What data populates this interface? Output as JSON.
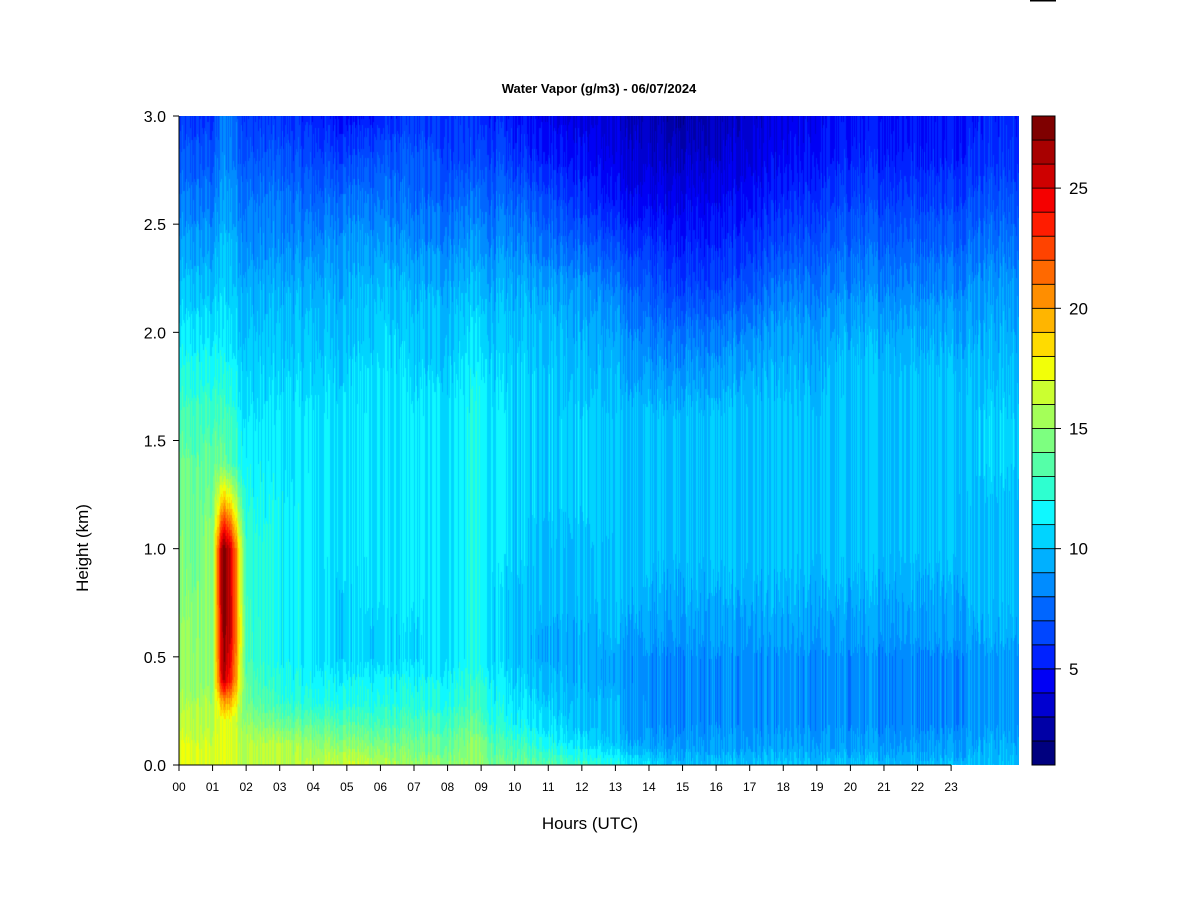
{
  "chart_data": {
    "type": "heatmap",
    "title": "Water Vapor (g/m3) - 06/07/2024",
    "xlabel": "Hours (UTC)",
    "ylabel": "Height (km)",
    "x_ticks": [
      "00",
      "01",
      "02",
      "03",
      "04",
      "05",
      "06",
      "07",
      "08",
      "09",
      "10",
      "11",
      "12",
      "13",
      "14",
      "15",
      "16",
      "17",
      "18",
      "19",
      "20",
      "21",
      "22",
      "23"
    ],
    "x_range": [
      0,
      23.85
    ],
    "y_ticks": [
      "0.0",
      "0.5",
      "1.0",
      "1.5",
      "2.0",
      "2.5",
      "3.0"
    ],
    "y_range": [
      0,
      3.0
    ],
    "colorbar": {
      "ticks": [
        "5",
        "10",
        "15",
        "20",
        "25"
      ],
      "range": [
        1,
        28
      ],
      "levels": [
        1,
        2,
        3,
        4,
        5,
        6,
        7,
        8,
        9,
        10,
        11,
        12,
        13,
        14,
        15,
        16,
        17,
        18,
        19,
        20,
        21,
        22,
        23,
        24,
        25,
        26,
        27,
        28
      ],
      "colors": [
        "#00007f",
        "#0000a6",
        "#0000d0",
        "#0000f5",
        "#0022ff",
        "#0046ff",
        "#0066ff",
        "#008cff",
        "#00b0ff",
        "#00d4ff",
        "#0ff8ff",
        "#2effd0",
        "#55ffa8",
        "#7dff80",
        "#a4ff58",
        "#cbff30",
        "#f2ff08",
        "#ffdb00",
        "#ffb500",
        "#ff8e00",
        "#ff6900",
        "#ff4300",
        "#ff1c00",
        "#f50000",
        "#ce0000",
        "#a80000",
        "#7f0000"
      ]
    },
    "hours": [
      0,
      0.5,
      1,
      1.3,
      1.5,
      2,
      3,
      4,
      5,
      6,
      7,
      8,
      8.8,
      9,
      9.5,
      10,
      11,
      12,
      13,
      14,
      15,
      16,
      17,
      18,
      19,
      20,
      21,
      22,
      23,
      23.85
    ],
    "heights": [
      0,
      0.1,
      0.2,
      0.3,
      0.4,
      0.5,
      0.6,
      0.8,
      1.0,
      1.2,
      1.4,
      1.6,
      1.8,
      2.0,
      2.2,
      2.4,
      2.6,
      2.8,
      3.0
    ],
    "values": [
      [
        17,
        17,
        17,
        17,
        17,
        16,
        16,
        16,
        17,
        16,
        15,
        15,
        15,
        15,
        14,
        14,
        14,
        13,
        12,
        11,
        10,
        10,
        10,
        10,
        10,
        10,
        10,
        10,
        10,
        10
      ],
      [
        17,
        16.5,
        16.5,
        17,
        17,
        16,
        16,
        15,
        15,
        14.5,
        14,
        14,
        15,
        14.5,
        13,
        13,
        12,
        11,
        10,
        9,
        9,
        9,
        9,
        9,
        9,
        9,
        9,
        9,
        9,
        9.5
      ],
      [
        16,
        16,
        16,
        17,
        17,
        15,
        14,
        13.5,
        13.5,
        13,
        13,
        13,
        14,
        13,
        12,
        11.5,
        11,
        10,
        9.5,
        8.5,
        8.5,
        8.5,
        8.5,
        8.5,
        8.5,
        8.5,
        8.5,
        8.5,
        8.5,
        9
      ],
      [
        15.5,
        15.5,
        15.5,
        20,
        20,
        14,
        12.5,
        12,
        12,
        12,
        12,
        12,
        13,
        12.5,
        11.5,
        11,
        10.5,
        10,
        9.5,
        8.5,
        8.5,
        8.5,
        8.5,
        8.5,
        8.5,
        8.5,
        8.5,
        8.5,
        8.5,
        9
      ],
      [
        15,
        15,
        15,
        26,
        24,
        13.5,
        12,
        11.5,
        11.5,
        11.5,
        11.5,
        11.5,
        12.5,
        12,
        11,
        10.5,
        10,
        9.5,
        9,
        8.5,
        8.5,
        8.5,
        8.5,
        8.5,
        8.5,
        8.5,
        8.5,
        8.5,
        8.5,
        9
      ],
      [
        15,
        15,
        15,
        27,
        25,
        13,
        11.5,
        11,
        10.5,
        10.5,
        10.5,
        11,
        12,
        11.5,
        10.5,
        10,
        9.5,
        9.5,
        9,
        8.5,
        8.5,
        8.5,
        8.5,
        8.5,
        8.5,
        8.5,
        8.5,
        8.5,
        8.5,
        9
      ],
      [
        15,
        14.5,
        15,
        27,
        26,
        13,
        11.5,
        11,
        10.5,
        10.5,
        10.5,
        11,
        12,
        11.5,
        10.5,
        10,
        9.5,
        9.5,
        9.5,
        9,
        9,
        9,
        9,
        9,
        9,
        9,
        9,
        9,
        9,
        9.5
      ],
      [
        14.5,
        14.5,
        15,
        28,
        26,
        12.5,
        11.5,
        11,
        10.5,
        11,
        11,
        11,
        12,
        11.5,
        10.5,
        10,
        10,
        10,
        10,
        9.5,
        9.5,
        9.5,
        9.5,
        9.5,
        9.5,
        9.5,
        9.5,
        9.5,
        9.5,
        10
      ],
      [
        14.5,
        14,
        15,
        28,
        26,
        12.5,
        11.5,
        11,
        11,
        11,
        11,
        11,
        12,
        11.5,
        11,
        10.5,
        10,
        10,
        10,
        10,
        10,
        10,
        10,
        10,
        10,
        10,
        10,
        10,
        10,
        10
      ],
      [
        14,
        14,
        14.5,
        20,
        19,
        12,
        11.5,
        11,
        11,
        11,
        11,
        11,
        12,
        11.5,
        11,
        10.5,
        10.5,
        10.5,
        10,
        10,
        10,
        10,
        10,
        10,
        10,
        10,
        10,
        10,
        10,
        10
      ],
      [
        14,
        13.5,
        14,
        14,
        13.5,
        11.5,
        11,
        11,
        11,
        11,
        11,
        11,
        12,
        11.5,
        11,
        10.5,
        10.5,
        10.5,
        10,
        10,
        10,
        10,
        10,
        10,
        10,
        10,
        10,
        10,
        10,
        10.5
      ],
      [
        13,
        13,
        13,
        13,
        13,
        11,
        11,
        11,
        11,
        11,
        11,
        11,
        12,
        11.5,
        11,
        10.5,
        10.5,
        10.5,
        10,
        10,
        10,
        10,
        10,
        10,
        10,
        10,
        10,
        10,
        10,
        10.5
      ],
      [
        12,
        12,
        12,
        12,
        12,
        10.5,
        10.5,
        10.5,
        10.5,
        11,
        10.5,
        10.5,
        11.5,
        11,
        10.5,
        10.5,
        10.5,
        10,
        9.5,
        9,
        9,
        9,
        9.5,
        9.5,
        9.5,
        10,
        10,
        10,
        10,
        10
      ],
      [
        11,
        11,
        11,
        11,
        11,
        10,
        10,
        10,
        10,
        10.5,
        10,
        10,
        11,
        10.5,
        10,
        10,
        10,
        9.5,
        9,
        8,
        8,
        8,
        8.5,
        9,
        9,
        9.5,
        9.5,
        9.5,
        9.5,
        9.5
      ],
      [
        10,
        10,
        10,
        10.5,
        10.5,
        9.5,
        9.5,
        9.5,
        9.5,
        10,
        9.5,
        9.5,
        10,
        9.5,
        9.5,
        9.5,
        9.5,
        9,
        8,
        7,
        6.5,
        6.5,
        7,
        8,
        8,
        8.5,
        8.5,
        8.5,
        8.5,
        9
      ],
      [
        9,
        9,
        9,
        10,
        10,
        8.5,
        8.5,
        8.5,
        9,
        9,
        8.5,
        8.5,
        9,
        8.5,
        8.5,
        8.5,
        8,
        7.5,
        6.5,
        6,
        5.5,
        5.5,
        6,
        6.5,
        7,
        7.5,
        7.5,
        7.5,
        7.5,
        8
      ],
      [
        8,
        8,
        8,
        9,
        9,
        8,
        8,
        7.5,
        8,
        8,
        7.5,
        7.5,
        8,
        7.5,
        7.5,
        7.5,
        7,
        6,
        5,
        4.5,
        4.5,
        4.5,
        5,
        5.5,
        6,
        6.5,
        6.5,
        6.5,
        6.5,
        7
      ],
      [
        7,
        7,
        7,
        8.5,
        8.5,
        7,
        7,
        6.5,
        6.5,
        7,
        7,
        6.5,
        6.5,
        6.5,
        6.5,
        6,
        5.5,
        5,
        4,
        3.5,
        3.5,
        3.5,
        4,
        4.5,
        5,
        5.5,
        5.5,
        5.5,
        5.5,
        6
      ],
      [
        6,
        6,
        6,
        8,
        8,
        6,
        6,
        5.5,
        5,
        5.5,
        6,
        6,
        6,
        5.5,
        5.5,
        5,
        4.5,
        4,
        3.5,
        3,
        2.5,
        3,
        3.5,
        4,
        4.5,
        5,
        5,
        5,
        5,
        5.5
      ]
    ]
  }
}
